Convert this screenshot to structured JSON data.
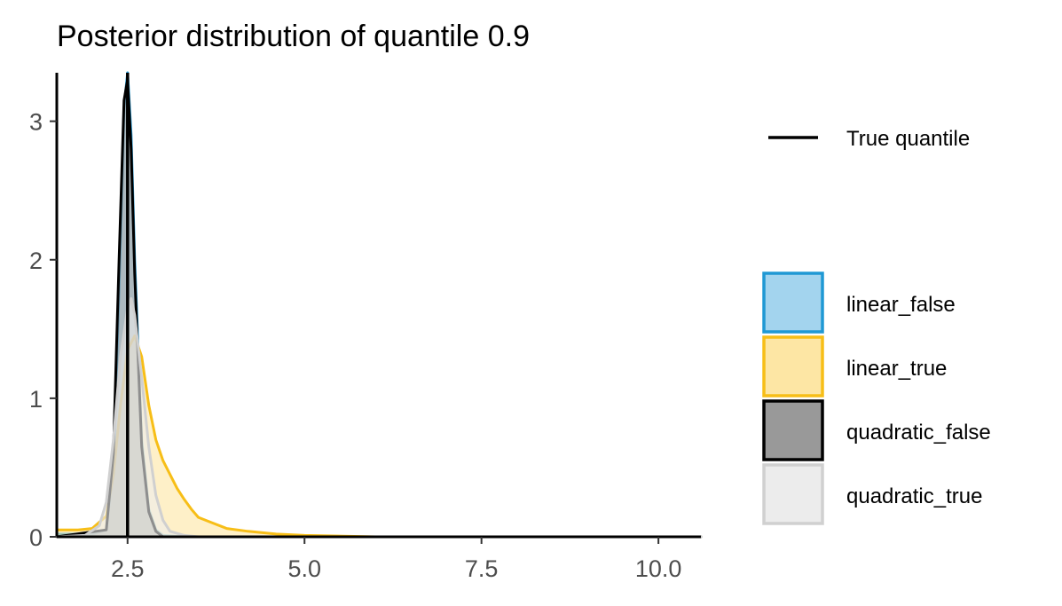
{
  "chart_data": {
    "type": "area",
    "title": "Posterior distribution of quantile 0.9",
    "xlabel": "",
    "ylabel": "",
    "xlim": [
      1.5,
      10.6
    ],
    "ylim": [
      0,
      3.35
    ],
    "x_ticks": [
      "2.5",
      "5.0",
      "7.5",
      "10.0"
    ],
    "y_ticks": [
      "0",
      "1",
      "2",
      "3"
    ],
    "grid": false,
    "legend_position": "right",
    "reference_line": {
      "name": "True quantile",
      "x": 2.5,
      "color": "#000000"
    },
    "series": [
      {
        "name": "linear_false",
        "fill": "#a3d4ee",
        "stroke": "#1f98d4",
        "points": [
          [
            1.5,
            0.02
          ],
          [
            2.0,
            0.02
          ],
          [
            2.2,
            0.05
          ],
          [
            2.3,
            0.5
          ],
          [
            2.38,
            1.8
          ],
          [
            2.45,
            3.1
          ],
          [
            2.5,
            3.35
          ],
          [
            2.55,
            2.9
          ],
          [
            2.6,
            2.0
          ],
          [
            2.7,
            0.7
          ],
          [
            2.8,
            0.2
          ],
          [
            2.9,
            0.05
          ],
          [
            3.0,
            0.01
          ],
          [
            3.3,
            0.0
          ],
          [
            10.6,
            0.0
          ]
        ]
      },
      {
        "name": "linear_true",
        "fill": "#fde6a4",
        "stroke": "#f7be17",
        "points": [
          [
            1.5,
            0.05
          ],
          [
            1.8,
            0.05
          ],
          [
            2.0,
            0.06
          ],
          [
            2.2,
            0.15
          ],
          [
            2.3,
            0.45
          ],
          [
            2.4,
            0.95
          ],
          [
            2.5,
            1.35
          ],
          [
            2.6,
            1.45
          ],
          [
            2.7,
            1.3
          ],
          [
            2.8,
            0.95
          ],
          [
            2.9,
            0.7
          ],
          [
            3.0,
            0.55
          ],
          [
            3.1,
            0.45
          ],
          [
            3.2,
            0.35
          ],
          [
            3.3,
            0.27
          ],
          [
            3.4,
            0.2
          ],
          [
            3.5,
            0.14
          ],
          [
            3.7,
            0.1
          ],
          [
            3.9,
            0.06
          ],
          [
            4.2,
            0.04
          ],
          [
            4.6,
            0.02
          ],
          [
            5.0,
            0.01
          ],
          [
            6.0,
            0.0
          ],
          [
            10.6,
            0.0
          ]
        ]
      },
      {
        "name": "quadratic_false",
        "fill": "#999999",
        "stroke": "#000000",
        "points": [
          [
            1.5,
            0.0
          ],
          [
            2.2,
            0.05
          ],
          [
            2.3,
            0.6
          ],
          [
            2.38,
            2.0
          ],
          [
            2.45,
            3.15
          ],
          [
            2.5,
            3.3
          ],
          [
            2.55,
            2.8
          ],
          [
            2.6,
            1.9
          ],
          [
            2.7,
            0.65
          ],
          [
            2.8,
            0.18
          ],
          [
            2.9,
            0.04
          ],
          [
            3.0,
            0.0
          ],
          [
            10.6,
            0.0
          ]
        ]
      },
      {
        "name": "quadratic_true",
        "fill": "#ececec",
        "stroke": "#d0d0d0",
        "points": [
          [
            1.5,
            0.0
          ],
          [
            1.9,
            0.01
          ],
          [
            2.1,
            0.08
          ],
          [
            2.2,
            0.25
          ],
          [
            2.3,
            0.7
          ],
          [
            2.4,
            1.3
          ],
          [
            2.5,
            1.65
          ],
          [
            2.55,
            1.72
          ],
          [
            2.6,
            1.6
          ],
          [
            2.7,
            1.15
          ],
          [
            2.8,
            0.65
          ],
          [
            2.9,
            0.3
          ],
          [
            3.0,
            0.12
          ],
          [
            3.1,
            0.04
          ],
          [
            3.3,
            0.01
          ],
          [
            3.5,
            0.0
          ],
          [
            10.6,
            0.0
          ]
        ]
      }
    ]
  }
}
